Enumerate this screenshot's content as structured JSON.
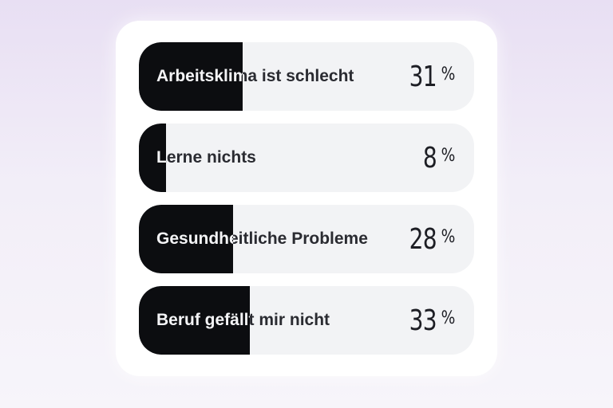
{
  "poll": {
    "options": [
      {
        "label": "Arbeitsklima ist schlecht",
        "percent": "31",
        "percent_sign": "%",
        "fill_fraction": 0.31
      },
      {
        "label": "Lerne nichts",
        "percent": "8",
        "percent_sign": "%",
        "fill_fraction": 0.08
      },
      {
        "label": "Gesundheitliche Probleme",
        "percent": "28",
        "percent_sign": "%",
        "fill_fraction": 0.28
      },
      {
        "label": "Beruf gefällt mir nicht",
        "percent": "33",
        "percent_sign": "%",
        "fill_fraction": 0.33
      }
    ]
  },
  "colors": {
    "fill": "#0c0d10",
    "track": "#f2f3f5",
    "background_top": "#e8dff3",
    "background_bottom": "#f7f5fa"
  }
}
